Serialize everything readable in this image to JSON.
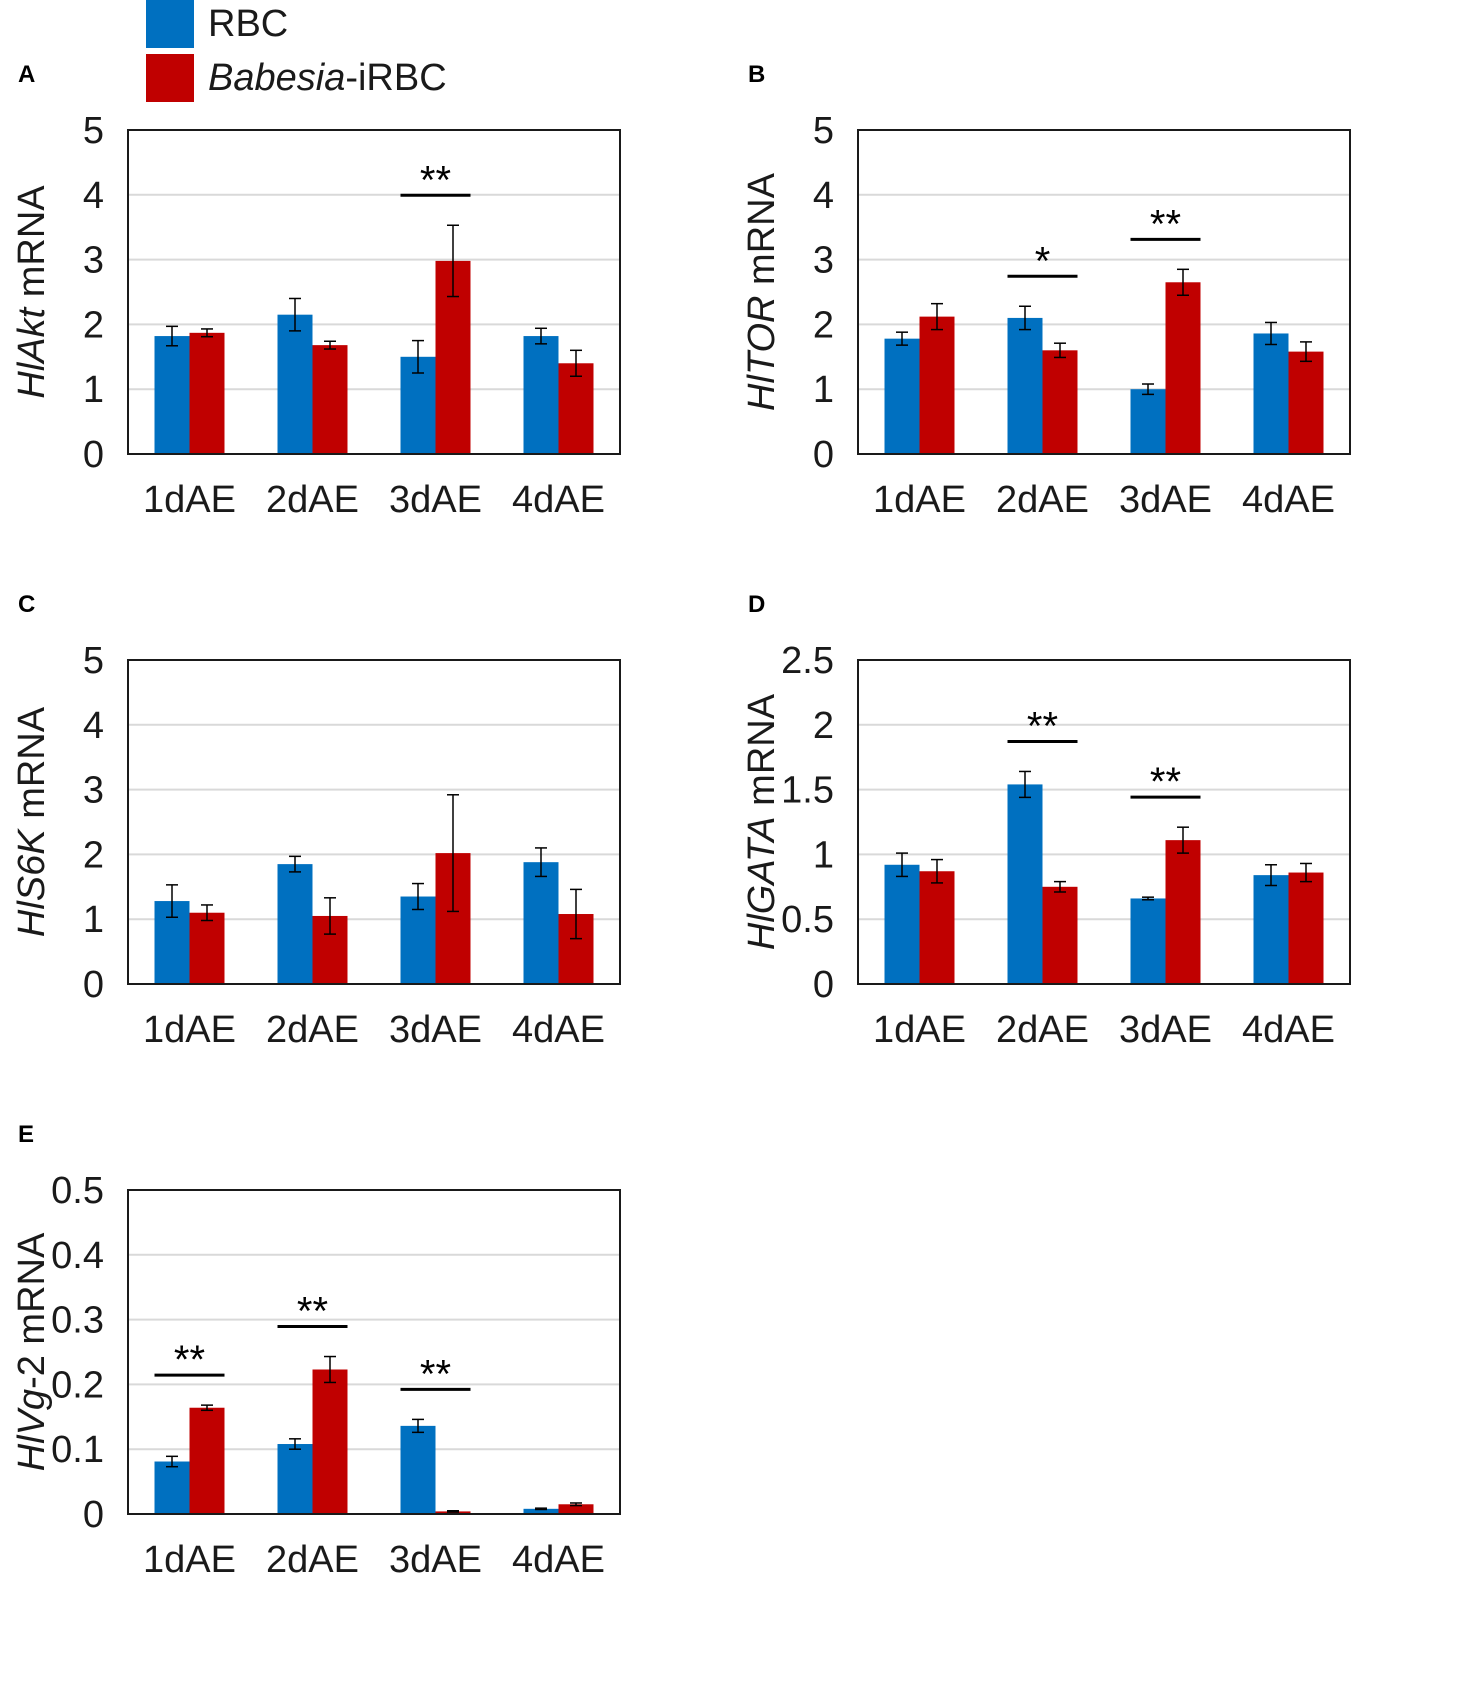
{
  "legend": [
    {
      "name": "RBC",
      "italic_part": "",
      "suffix": "RBC",
      "color": "#0070C0"
    },
    {
      "name": "Babesia-iRBC",
      "italic_part": "Babesia",
      "suffix": "-iRBC",
      "color": "#C00000"
    }
  ],
  "chart_data": [
    {
      "panel": "A",
      "type": "bar",
      "ylabel_italic": "HlAkt",
      "ylabel_rest": " mRNA",
      "categories": [
        "1dAE",
        "2dAE",
        "3dAE",
        "4dAE"
      ],
      "ylim": [
        0,
        5
      ],
      "yticks": [
        "0",
        "1",
        "2",
        "3",
        "4",
        "5"
      ],
      "ystep": 1,
      "series": [
        {
          "name": "RBC",
          "values": [
            1.82,
            2.15,
            1.5,
            1.82
          ],
          "errors": [
            0.15,
            0.25,
            0.25,
            0.12
          ]
        },
        {
          "name": "Babesia-iRBC",
          "values": [
            1.87,
            1.68,
            2.98,
            1.4
          ],
          "errors": [
            0.06,
            0.06,
            0.55,
            0.2
          ]
        }
      ],
      "significance": [
        {
          "category_index": 2,
          "label": "**"
        }
      ]
    },
    {
      "panel": "B",
      "type": "bar",
      "ylabel_italic": "HlTOR",
      "ylabel_rest": " mRNA",
      "categories": [
        "1dAE",
        "2dAE",
        "3dAE",
        "4dAE"
      ],
      "ylim": [
        0,
        5
      ],
      "yticks": [
        "0",
        "1",
        "2",
        "3",
        "4",
        "5"
      ],
      "ystep": 1,
      "series": [
        {
          "name": "RBC",
          "values": [
            1.78,
            2.1,
            1.0,
            1.86
          ],
          "errors": [
            0.1,
            0.18,
            0.08,
            0.17
          ]
        },
        {
          "name": "Babesia-iRBC",
          "values": [
            2.12,
            1.6,
            2.65,
            1.58
          ],
          "errors": [
            0.2,
            0.11,
            0.2,
            0.15
          ]
        }
      ],
      "significance": [
        {
          "category_index": 1,
          "label": "*"
        },
        {
          "category_index": 2,
          "label": "**"
        }
      ]
    },
    {
      "panel": "C",
      "type": "bar",
      "ylabel_italic": "HlS6K",
      "ylabel_rest": " mRNA",
      "categories": [
        "1dAE",
        "2dAE",
        "3dAE",
        "4dAE"
      ],
      "ylim": [
        0,
        5
      ],
      "yticks": [
        "0",
        "1",
        "2",
        "3",
        "4",
        "5"
      ],
      "ystep": 1,
      "series": [
        {
          "name": "RBC",
          "values": [
            1.28,
            1.85,
            1.35,
            1.88
          ],
          "errors": [
            0.25,
            0.12,
            0.2,
            0.22
          ]
        },
        {
          "name": "Babesia-iRBC",
          "values": [
            1.1,
            1.05,
            2.02,
            1.08
          ],
          "errors": [
            0.12,
            0.28,
            0.9,
            0.38
          ]
        }
      ],
      "significance": []
    },
    {
      "panel": "D",
      "type": "bar",
      "ylabel_italic": "HlGATA",
      "ylabel_rest": " mRNA",
      "categories": [
        "1dAE",
        "2dAE",
        "3dAE",
        "4dAE"
      ],
      "ylim": [
        0,
        2.5
      ],
      "yticks": [
        "0",
        "0.5",
        "1",
        "1.5",
        "2",
        "2.5"
      ],
      "ystep": 0.5,
      "series": [
        {
          "name": "RBC",
          "values": [
            0.92,
            1.54,
            0.66,
            0.84
          ],
          "errors": [
            0.09,
            0.1,
            0.01,
            0.08
          ]
        },
        {
          "name": "Babesia-iRBC",
          "values": [
            0.87,
            0.75,
            1.11,
            0.86
          ],
          "errors": [
            0.09,
            0.04,
            0.1,
            0.07
          ]
        }
      ],
      "significance": [
        {
          "category_index": 1,
          "label": "**"
        },
        {
          "category_index": 2,
          "label": "**"
        }
      ]
    },
    {
      "panel": "E",
      "type": "bar",
      "ylabel_italic": "HlVg",
      "ylabel_rest": "-2 mRNA",
      "categories": [
        "1dAE",
        "2dAE",
        "3dAE",
        "4dAE"
      ],
      "ylim": [
        0,
        0.5
      ],
      "yticks": [
        "0",
        "0.1",
        "0.2",
        "0.3",
        "0.4",
        "0.5"
      ],
      "ystep": 0.1,
      "series": [
        {
          "name": "RBC",
          "values": [
            0.081,
            0.108,
            0.136,
            0.008
          ],
          "errors": [
            0.008,
            0.008,
            0.01,
            0.001
          ]
        },
        {
          "name": "Babesia-iRBC",
          "values": [
            0.164,
            0.223,
            0.004,
            0.015
          ],
          "errors": [
            0.004,
            0.02,
            0.001,
            0.002
          ]
        }
      ],
      "significance": [
        {
          "category_index": 0,
          "label": "**"
        },
        {
          "category_index": 1,
          "label": "**"
        },
        {
          "category_index": 2,
          "label": "**"
        }
      ]
    }
  ]
}
